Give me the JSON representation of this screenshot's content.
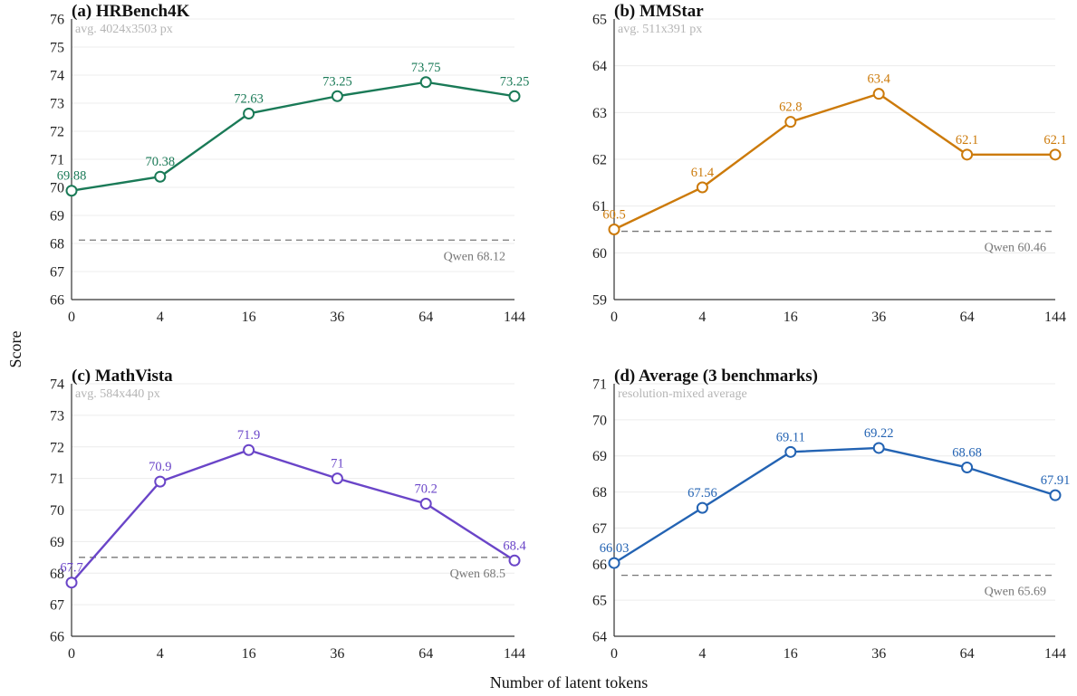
{
  "figure": {
    "ylabel": "Score",
    "xlabel": "Number of latent tokens"
  },
  "chart_data": [
    {
      "type": "line",
      "title": "(a) HRBench4K",
      "subtitle": "avg. 4024x3503 px",
      "categories": [
        "0",
        "4",
        "16",
        "36",
        "64",
        "144"
      ],
      "series": [
        {
          "values": [
            69.88,
            70.38,
            72.63,
            73.25,
            73.75,
            73.25
          ],
          "labels": [
            "69.88",
            "70.38",
            "72.63",
            "73.25",
            "73.75",
            "73.25"
          ],
          "color": "#1a7a57"
        }
      ],
      "reference": {
        "value": 68.12,
        "label": "Qwen 68.12"
      },
      "ylim": [
        66,
        76
      ],
      "yticks": [
        "66",
        "67",
        "68",
        "69",
        "70",
        "71",
        "72",
        "73",
        "74",
        "75",
        "76"
      ],
      "grid": true
    },
    {
      "type": "line",
      "title": "(b) MMStar",
      "subtitle": "avg. 511x391 px",
      "categories": [
        "0",
        "4",
        "16",
        "36",
        "64",
        "144"
      ],
      "series": [
        {
          "values": [
            60.5,
            61.4,
            62.8,
            63.4,
            62.1,
            62.1
          ],
          "labels": [
            "60.5",
            "61.4",
            "62.8",
            "63.4",
            "62.1",
            "62.1"
          ],
          "color": "#cc7a0a"
        }
      ],
      "reference": {
        "value": 60.46,
        "label": "Qwen 60.46"
      },
      "ylim": [
        59,
        65
      ],
      "yticks": [
        "59",
        "60",
        "61",
        "62",
        "63",
        "64",
        "65"
      ],
      "grid": true
    },
    {
      "type": "line",
      "title": "(c) MathVista",
      "subtitle": "avg. 584x440 px",
      "categories": [
        "0",
        "4",
        "16",
        "36",
        "64",
        "144"
      ],
      "series": [
        {
          "values": [
            67.7,
            70.9,
            71.9,
            71.0,
            70.2,
            68.4
          ],
          "labels": [
            "67.7",
            "70.9",
            "71.9",
            "71",
            "70.2",
            "68.4"
          ],
          "color": "#6a45c8"
        }
      ],
      "reference": {
        "value": 68.5,
        "label": "Qwen 68.5"
      },
      "ylim": [
        66,
        74
      ],
      "yticks": [
        "66",
        "67",
        "68",
        "69",
        "70",
        "71",
        "72",
        "73",
        "74"
      ],
      "grid": true
    },
    {
      "type": "line",
      "title": "(d) Average (3 benchmarks)",
      "subtitle": "resolution-mixed average",
      "categories": [
        "0",
        "4",
        "16",
        "36",
        "64",
        "144"
      ],
      "series": [
        {
          "values": [
            66.03,
            67.56,
            69.11,
            69.22,
            68.68,
            67.91
          ],
          "labels": [
            "66.03",
            "67.56",
            "69.11",
            "69.22",
            "68.68",
            "67.91"
          ],
          "color": "#2363b3"
        }
      ],
      "reference": {
        "value": 65.69,
        "label": "Qwen 65.69"
      },
      "ylim": [
        64,
        71
      ],
      "yticks": [
        "64",
        "65",
        "66",
        "67",
        "68",
        "69",
        "70",
        "71"
      ],
      "grid": true
    }
  ]
}
